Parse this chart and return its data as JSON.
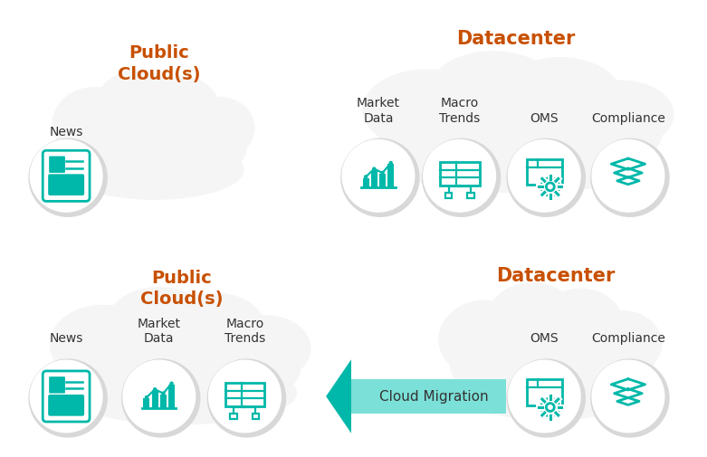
{
  "bg_color": "#ffffff",
  "orange_color": "#c85000",
  "teal_color": "#00b8a9",
  "teal_light": "#4dd9cc",
  "text_dark": "#333333",
  "cloud_color": "#f5f5f5",
  "top_left_title": "Public\nCloud(s)",
  "top_right_title": "Datacenter",
  "bottom_left_title": "Public\nCloud(s)",
  "bottom_right_title": "Datacenter",
  "arrow_label": "Cloud Migration"
}
